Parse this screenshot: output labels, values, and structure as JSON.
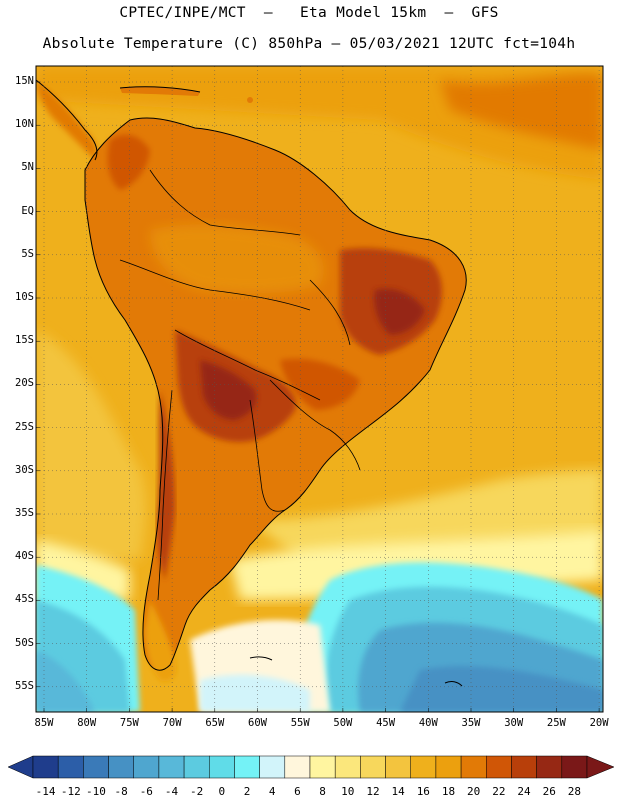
{
  "title": {
    "line1": "CPTEC/INPE/MCT  –   Eta Model 15km  –  GFS",
    "line2": "Absolute Temperature (C) 850hPa – 05/03/2021 12UTC fct=104h"
  },
  "latitude_labels": [
    "15N",
    "10N",
    "5N",
    "EQ",
    "5S",
    "10S",
    "15S",
    "20S",
    "25S",
    "30S",
    "35S",
    "40S",
    "45S",
    "50S",
    "55S"
  ],
  "longitude_labels": [
    "85W",
    "80W",
    "75W",
    "70W",
    "65W",
    "60W",
    "55W",
    "50W",
    "45W",
    "40W",
    "35W",
    "30W",
    "25W",
    "20W"
  ],
  "colorbar": {
    "labels": [
      "-14",
      "-12",
      "-10",
      "-8",
      "-6",
      "-4",
      "-2",
      "0",
      "2",
      "4",
      "6",
      "8",
      "10",
      "12",
      "14",
      "16",
      "18",
      "20",
      "22",
      "24",
      "26",
      "28"
    ],
    "colors": [
      "#1f3d8c",
      "#2c5ea8",
      "#3a7ab8",
      "#4691c4",
      "#4fa6cf",
      "#58b8d9",
      "#5ccbe0",
      "#60dce8",
      "#74f2f6",
      "#d2f4fa",
      "#fff6dc",
      "#fff5a0",
      "#fbe77c",
      "#f7d75c",
      "#f3c43e",
      "#efb01c",
      "#eca00e",
      "#e27a06",
      "#d05606",
      "#b83f0a",
      "#962814",
      "#7a1818"
    ]
  },
  "colors": {
    "ocean_background": "#efb01c",
    "land_warm": "#e27a06",
    "land_hot": "#b83f0a",
    "cold_south": "#5ccbe0"
  }
}
